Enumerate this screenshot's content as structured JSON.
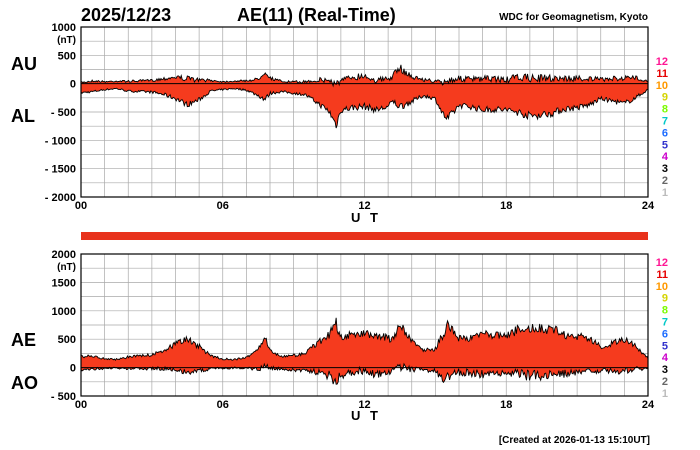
{
  "header": {
    "date": "2025/12/23",
    "title": "AE(11) (Real-Time)",
    "org": "WDC for Geomagnetism, Kyoto"
  },
  "footer": {
    "created": "[Created at 2026-01-13 15:10UT]"
  },
  "colors": {
    "fill": "#f53b1e",
    "line": "#000000",
    "grid": "#a8a8a8",
    "bar": "#e8321c"
  },
  "level_scale": {
    "labels": [
      "12",
      "11",
      "10",
      "9",
      "8",
      "7",
      "6",
      "5",
      "4",
      "3",
      "2",
      "1"
    ],
    "colors": [
      "#ff1493",
      "#e60000",
      "#ff9900",
      "#d4d400",
      "#7cfc00",
      "#00c8c8",
      "#1e6cff",
      "#3333cc",
      "#cc00cc",
      "#000000",
      "#666666",
      "#bbbbbb"
    ]
  },
  "chart_data": [
    {
      "type": "area",
      "upper_label": "AU",
      "lower_label": "AL",
      "unit": "(nT)",
      "xlabel": "U T",
      "xlim": [
        0,
        24
      ],
      "xticks": [
        0,
        6,
        12,
        18,
        24
      ],
      "xtick_labels": [
        "00",
        "06",
        "12",
        "18",
        "24"
      ],
      "ylim": [
        -2000,
        1000
      ],
      "yticks": [
        1000,
        500,
        0,
        -500,
        -1000,
        -1500,
        -2000
      ],
      "ytick_labels": [
        "1000",
        "500",
        "0",
        "- 500",
        "- 1000",
        "- 1500",
        "- 2000"
      ],
      "hours": [
        0,
        0.5,
        1,
        1.5,
        2,
        2.5,
        3,
        3.5,
        4,
        4.5,
        5,
        5.5,
        6,
        6.5,
        7,
        7.5,
        7.8,
        8,
        8.5,
        9,
        9.5,
        10,
        10.5,
        10.8,
        11,
        11.5,
        12,
        12.5,
        13,
        13.2,
        13.5,
        14,
        14.5,
        15,
        15.3,
        15.5,
        15.8,
        16,
        16.5,
        17,
        17.5,
        18,
        18.5,
        19,
        19.5,
        20,
        20.5,
        21,
        21.5,
        22,
        22.5,
        23,
        23.5,
        24
      ],
      "series": [
        {
          "name": "AU",
          "values": [
            40,
            70,
            50,
            60,
            60,
            70,
            80,
            120,
            160,
            140,
            100,
            80,
            50,
            60,
            70,
            110,
            280,
            130,
            60,
            50,
            60,
            110,
            120,
            80,
            100,
            180,
            200,
            120,
            130,
            190,
            350,
            170,
            100,
            80,
            60,
            130,
            150,
            140,
            130,
            140,
            150,
            120,
            180,
            170,
            160,
            170,
            150,
            150,
            140,
            110,
            130,
            150,
            140,
            60
          ]
        },
        {
          "name": "AL",
          "values": [
            -180,
            -160,
            -120,
            -100,
            -150,
            -160,
            -170,
            -220,
            -300,
            -420,
            -320,
            -150,
            -120,
            -100,
            -130,
            -240,
            -330,
            -200,
            -160,
            -190,
            -220,
            -380,
            -550,
            -810,
            -520,
            -480,
            -460,
            -520,
            -460,
            -360,
            -480,
            -360,
            -240,
            -300,
            -580,
            -700,
            -550,
            -430,
            -460,
            -520,
            -510,
            -520,
            -570,
            -640,
            -620,
            -580,
            -500,
            -480,
            -430,
            -300,
            -350,
            -400,
            -280,
            -120
          ]
        }
      ]
    },
    {
      "type": "area",
      "upper_label": "AE",
      "lower_label": "AO",
      "unit": "(nT)",
      "xlabel": "U T",
      "xlim": [
        0,
        24
      ],
      "xticks": [
        0,
        6,
        12,
        18,
        24
      ],
      "xtick_labels": [
        "00",
        "06",
        "12",
        "18",
        "24"
      ],
      "ylim": [
        -500,
        2000
      ],
      "yticks": [
        2000,
        1500,
        1000,
        500,
        0,
        -500
      ],
      "ytick_labels": [
        "2000",
        "1500",
        "1000",
        "500",
        "0",
        "- 500"
      ],
      "hours": [
        0,
        0.5,
        1,
        1.5,
        2,
        2.5,
        3,
        3.5,
        4,
        4.5,
        5,
        5.5,
        6,
        6.5,
        7,
        7.5,
        7.8,
        8,
        8.5,
        9,
        9.5,
        10,
        10.5,
        10.8,
        11,
        11.5,
        12,
        12.5,
        13,
        13.2,
        13.5,
        14,
        14.5,
        15,
        15.3,
        15.5,
        15.8,
        16,
        16.5,
        17,
        17.5,
        18,
        18.5,
        19,
        19.5,
        20,
        20.5,
        21,
        21.5,
        22,
        22.5,
        23,
        23.5,
        24
      ],
      "series": [
        {
          "name": "AE",
          "values": [
            220,
            230,
            170,
            160,
            210,
            230,
            250,
            340,
            460,
            560,
            420,
            230,
            170,
            160,
            200,
            350,
            610,
            330,
            220,
            240,
            280,
            490,
            670,
            890,
            620,
            660,
            660,
            640,
            590,
            550,
            830,
            530,
            340,
            380,
            640,
            830,
            700,
            570,
            590,
            660,
            660,
            640,
            750,
            810,
            780,
            750,
            650,
            630,
            570,
            410,
            480,
            550,
            420,
            180
          ]
        },
        {
          "name": "AO",
          "values": [
            -70,
            -45,
            -35,
            -20,
            -45,
            -45,
            -45,
            -50,
            -70,
            -140,
            -110,
            -35,
            -35,
            -20,
            -30,
            -65,
            -25,
            -35,
            -50,
            -70,
            -80,
            -135,
            -215,
            -365,
            -210,
            -150,
            -130,
            -200,
            -165,
            -85,
            -65,
            -95,
            -70,
            -110,
            -260,
            -285,
            -200,
            -145,
            -165,
            -190,
            -180,
            -200,
            -195,
            -235,
            -230,
            -205,
            -175,
            -165,
            -145,
            -95,
            -110,
            -125,
            -70,
            -30
          ]
        }
      ]
    }
  ]
}
